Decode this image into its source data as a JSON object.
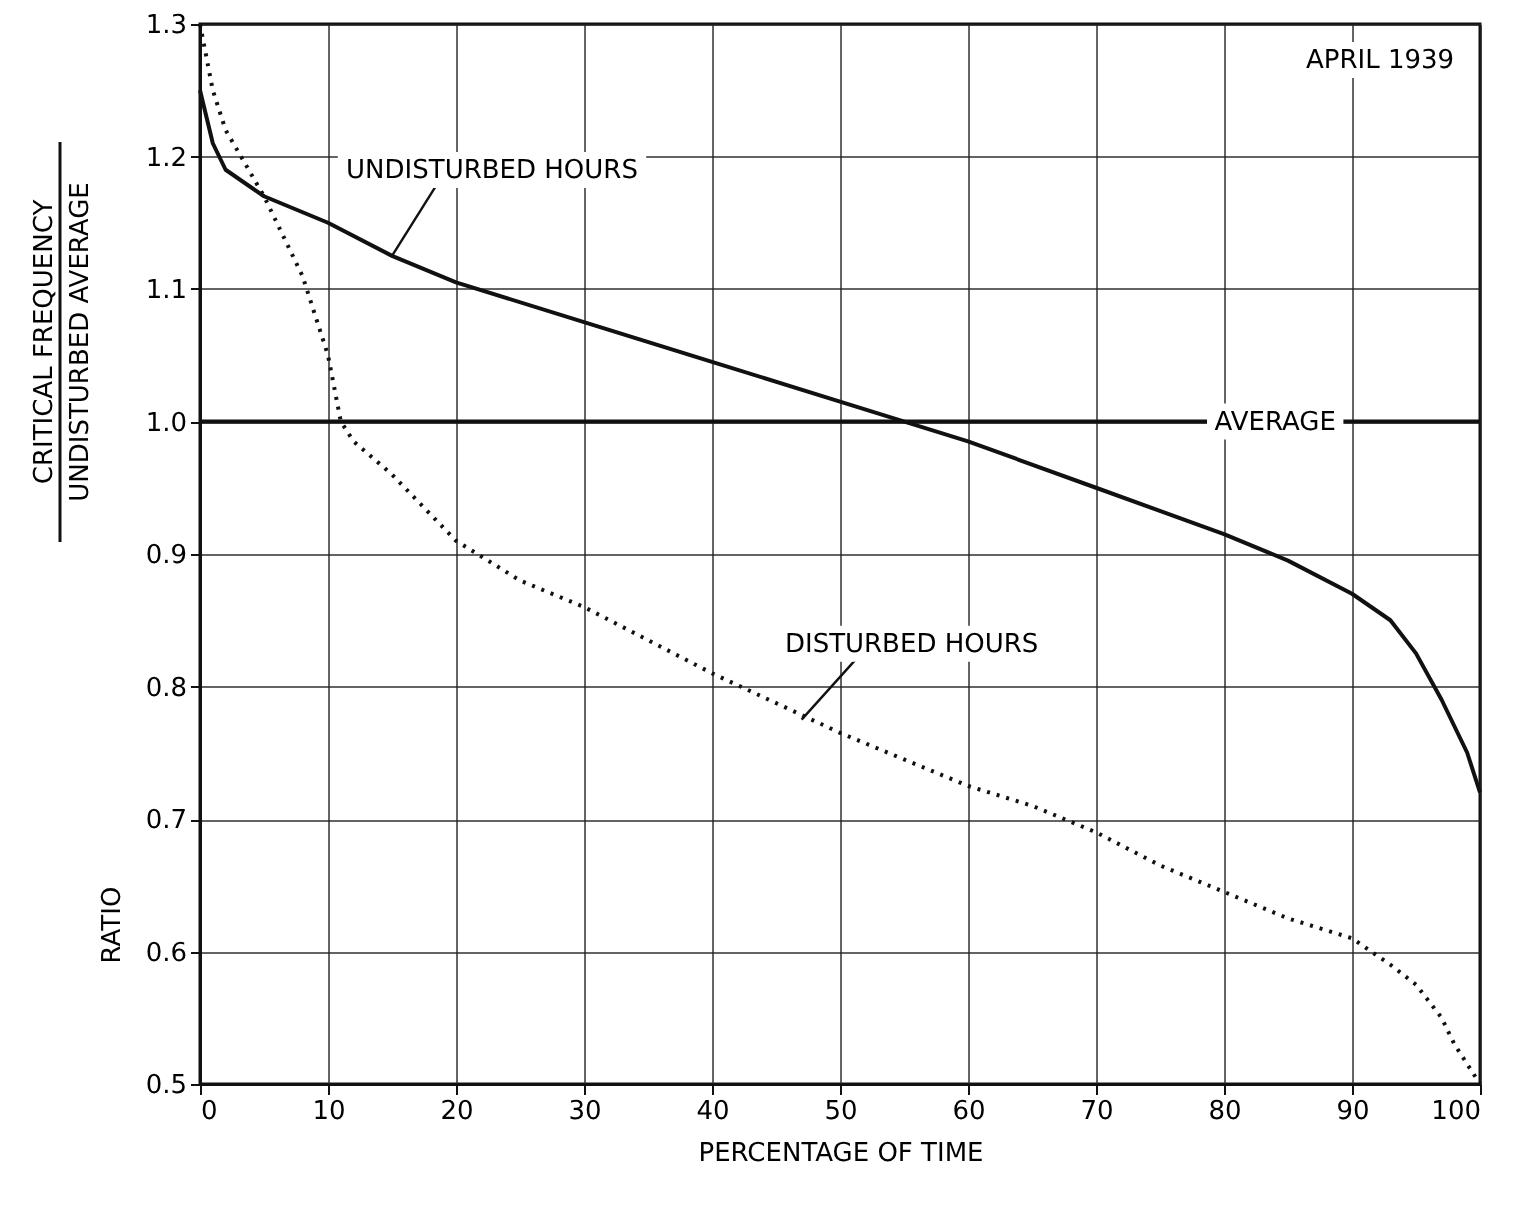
{
  "chart_data": {
    "type": "line",
    "xlabel": "PERCENTAGE OF TIME",
    "ylabel": "RATIO",
    "annotations": [
      "APRIL 1939",
      "CRITICAL FREQUENCY",
      "UNDISTURBED AVERAGE",
      {
        "text": "UNDISTURBED HOURS",
        "x": 15,
        "y": 1.125
      },
      {
        "text": "DISTURBED HOURS",
        "x": 47,
        "y": 0.775
      }
    ],
    "series": [
      {
        "color": "#111111",
        "line_style": "solid",
        "x": [
          0,
          1,
          2,
          5,
          10,
          15,
          20,
          30,
          40,
          50,
          60,
          70,
          80,
          85,
          90,
          93,
          95,
          97,
          98,
          99,
          100
        ],
        "values": [
          1.25,
          1.21,
          1.19,
          1.17,
          1.15,
          1.125,
          1.105,
          1.075,
          1.045,
          1.015,
          0.985,
          0.95,
          0.915,
          0.895,
          0.87,
          0.85,
          0.825,
          0.79,
          0.77,
          0.75,
          0.72
        ]
      },
      {
        "color": "#111111",
        "line_style": "dotted",
        "x": [
          0,
          1,
          2,
          5,
          8,
          10,
          11,
          12,
          15,
          18,
          20,
          25,
          30,
          40,
          50,
          55,
          60,
          65,
          70,
          75,
          80,
          85,
          90,
          93,
          95,
          97,
          98,
          100
        ],
        "values": [
          1.3,
          1.25,
          1.22,
          1.17,
          1.11,
          1.05,
          1.0,
          0.985,
          0.96,
          0.93,
          0.91,
          0.88,
          0.86,
          0.81,
          0.765,
          0.745,
          0.725,
          0.71,
          0.69,
          0.665,
          0.645,
          0.625,
          0.61,
          0.59,
          0.575,
          0.55,
          0.53,
          0.5
        ]
      }
    ],
    "ref_lines": [
      {
        "axis": "y",
        "value": 1.0,
        "label": "AVERAGE"
      }
    ],
    "xlim": [
      0,
      100
    ],
    "xticks": [
      0,
      10,
      20,
      30,
      40,
      50,
      60,
      70,
      80,
      90,
      100
    ],
    "ylim": [
      0.5,
      1.3
    ],
    "yticks": [
      0.5,
      0.6,
      0.7,
      0.8,
      0.9,
      {
        "value": 1,
        "label": "1.0"
      },
      1.1,
      1.2,
      1.3
    ],
    "grid": true
  }
}
